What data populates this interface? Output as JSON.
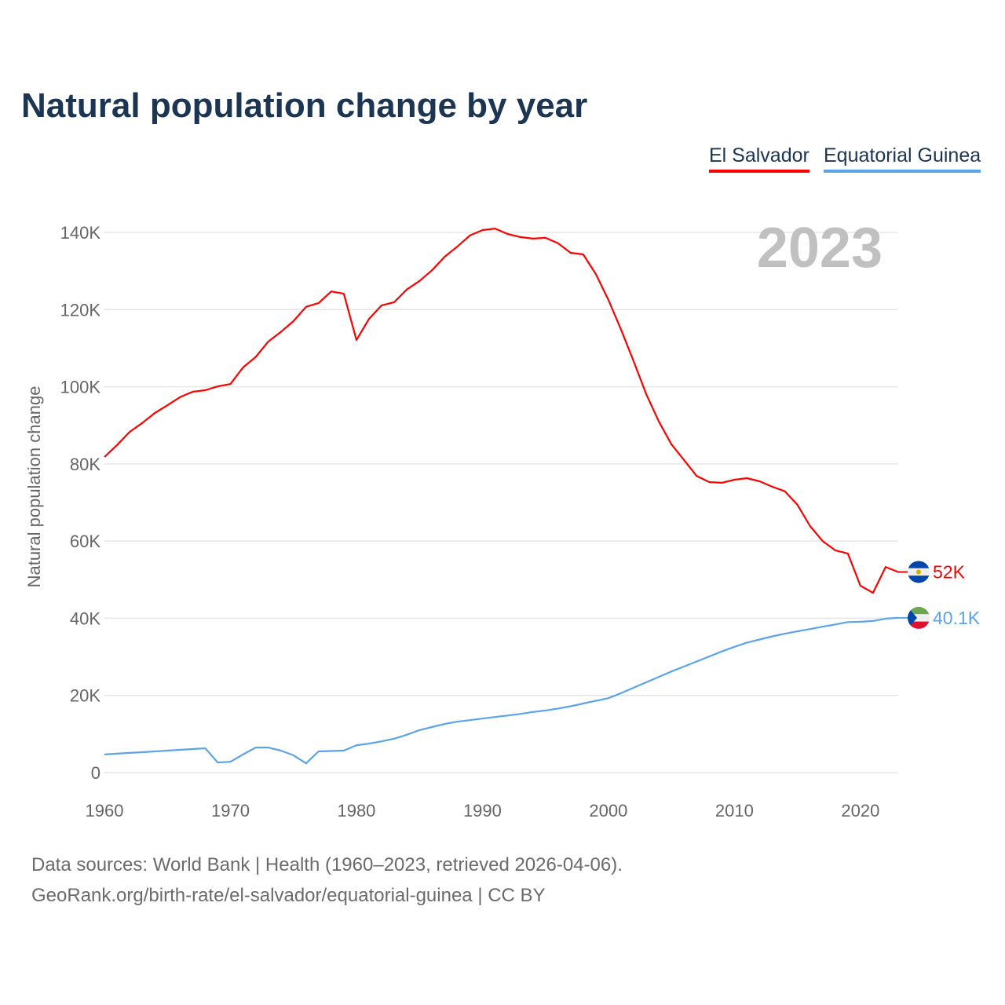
{
  "chart_data": {
    "type": "line",
    "title": "Natural population change by year",
    "xlabel": "",
    "ylabel": "Natural population change",
    "xlim": [
      1960,
      2023
    ],
    "ylim": [
      0,
      140000
    ],
    "x_ticks": [
      1960,
      1970,
      1980,
      1990,
      2000,
      2010,
      2020
    ],
    "x_tick_labels": [
      "1960",
      "1970",
      "1980",
      "1990",
      "2000",
      "2010",
      "2020"
    ],
    "y_ticks": [
      0,
      20000,
      40000,
      60000,
      80000,
      100000,
      120000,
      140000
    ],
    "y_tick_labels": [
      "0",
      "20K",
      "40K",
      "60K",
      "80K",
      "100K",
      "120K",
      "140K"
    ],
    "grid": true,
    "legend_position": "top-right",
    "year_watermark": "2023",
    "x": [
      1960,
      1961,
      1962,
      1963,
      1964,
      1965,
      1966,
      1967,
      1968,
      1969,
      1970,
      1971,
      1972,
      1973,
      1974,
      1975,
      1976,
      1977,
      1978,
      1979,
      1980,
      1981,
      1982,
      1983,
      1984,
      1985,
      1986,
      1987,
      1988,
      1989,
      1990,
      1991,
      1992,
      1993,
      1994,
      1995,
      1996,
      1997,
      1998,
      1999,
      2000,
      2001,
      2002,
      2003,
      2004,
      2005,
      2006,
      2007,
      2008,
      2009,
      2010,
      2011,
      2012,
      2013,
      2014,
      2015,
      2016,
      2017,
      2018,
      2019,
      2020,
      2021,
      2022,
      2023
    ],
    "series": [
      {
        "name": "El Salvador",
        "color": "#ff0000",
        "end_label": "52K",
        "flag": "el-salvador-flag",
        "values": [
          81800,
          84900,
          88300,
          90600,
          93200,
          95200,
          97300,
          98700,
          99100,
          100100,
          100700,
          105000,
          107700,
          111700,
          114200,
          117000,
          120700,
          121700,
          124700,
          124100,
          112100,
          117600,
          121100,
          121900,
          125200,
          127400,
          130200,
          133700,
          136300,
          139200,
          140600,
          141000,
          139600,
          138800,
          138400,
          138600,
          137200,
          134700,
          134300,
          129200,
          122500,
          114800,
          106600,
          98100,
          91000,
          85100,
          81000,
          76900,
          75300,
          75100,
          75900,
          76300,
          75500,
          74100,
          72900,
          69400,
          63900,
          60000,
          57600,
          56800,
          48400,
          46600,
          53300,
          52000
        ]
      },
      {
        "name": "Equatorial Guinea",
        "color": "#5ba4e8",
        "end_label": "40.1K",
        "flag": "equatorial-guinea-flag",
        "values": [
          4700,
          4900,
          5100,
          5300,
          5500,
          5700,
          5900,
          6100,
          6300,
          2600,
          2800,
          4700,
          6500,
          6500,
          5700,
          4500,
          2400,
          5500,
          5600,
          5700,
          7100,
          7500,
          8100,
          8800,
          9800,
          11000,
          11800,
          12600,
          13200,
          13600,
          14000,
          14400,
          14800,
          15200,
          15700,
          16100,
          16600,
          17200,
          17900,
          18600,
          19300,
          20600,
          22000,
          23400,
          24800,
          26200,
          27500,
          28800,
          30100,
          31400,
          32600,
          33700,
          34500,
          35300,
          36000,
          36600,
          37200,
          37800,
          38400,
          39000,
          39100,
          39300,
          39900,
          40100
        ]
      }
    ]
  },
  "footer": {
    "line1": "Data sources: World Bank | Health (1960–2023, retrieved 2026-04-06).",
    "line2": "GeoRank.org/birth-rate/el-salvador/equatorial-guinea | CC BY"
  }
}
